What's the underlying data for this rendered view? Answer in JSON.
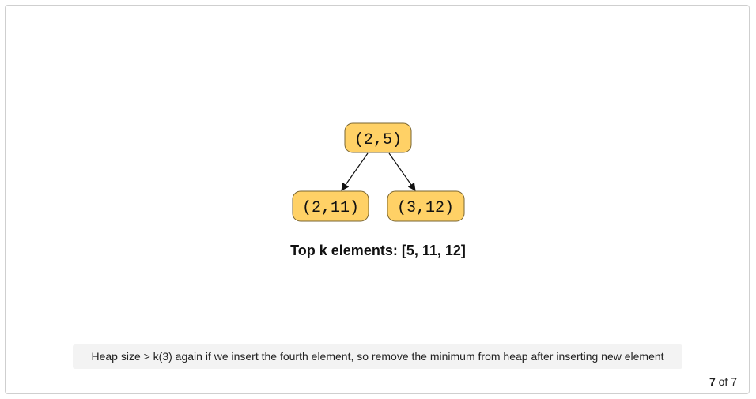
{
  "diagram": {
    "type": "binary-heap-tree",
    "nodes": [
      {
        "id": "root",
        "label": "(2,5)"
      },
      {
        "id": "left",
        "label": "(2,11)"
      },
      {
        "id": "right",
        "label": "(3,12)"
      }
    ],
    "edges": [
      {
        "from": "root",
        "to": "left"
      },
      {
        "from": "root",
        "to": "right"
      }
    ],
    "node_fill": "#ffd166",
    "node_stroke": "#7a6530",
    "edge_color": "#111111"
  },
  "result_text": "Top k elements: [5, 11, 12]",
  "caption": "Heap size > k(3) again if we insert the fourth element, so remove the minimum from heap after inserting new element",
  "pager": {
    "current": "7",
    "separator": "of",
    "total": "7"
  }
}
